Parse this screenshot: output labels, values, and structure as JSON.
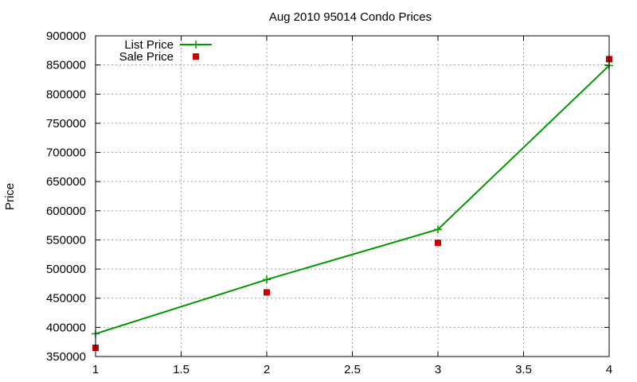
{
  "chart_data": {
    "type": "line",
    "title": "Aug 2010 95014 Condo Prices",
    "xlabel": "",
    "ylabel": "Price",
    "xlim": [
      1,
      4
    ],
    "ylim": [
      350000,
      900000
    ],
    "x_ticks": [
      "1",
      "1.5",
      "2",
      "2.5",
      "3",
      "3.5",
      "4"
    ],
    "y_ticks": [
      "350000",
      "400000",
      "450000",
      "500000",
      "550000",
      "600000",
      "650000",
      "700000",
      "750000",
      "800000",
      "850000",
      "900000"
    ],
    "grid": true,
    "legend_position": "top-left",
    "series": [
      {
        "name": "List Price",
        "style": "line+cross",
        "color": "#009900",
        "x": [
          1,
          2,
          3,
          4
        ],
        "y": [
          389000,
          482000,
          568000,
          849000
        ]
      },
      {
        "name": "Sale Price",
        "style": "square-markers",
        "color": "#cc0000",
        "x": [
          1,
          2,
          3,
          4
        ],
        "y": [
          365000,
          460000,
          545000,
          860000
        ]
      }
    ]
  }
}
